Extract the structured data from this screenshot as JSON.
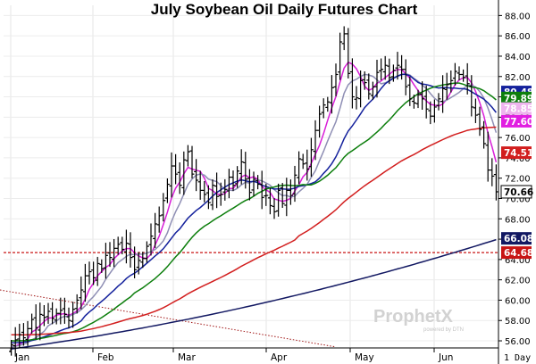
{
  "chart_data": {
    "type": "line",
    "title": "July Soybean Oil Daily Futures Chart",
    "y_axis": {
      "ticks": [
        56,
        58,
        60,
        62,
        64,
        66,
        68,
        70,
        72,
        74,
        76,
        78,
        80,
        82,
        84,
        86,
        88
      ],
      "labels": [
        "56.00",
        "58.00",
        "60.00",
        "62.00",
        "64.00",
        "66.00",
        "68.00",
        "70.00",
        "72.00",
        "74.00",
        "76.00",
        "78.00",
        "80.00",
        "82.00",
        "84.00",
        "86.00",
        "88.00"
      ],
      "ylim": [
        55.3,
        89.0
      ]
    },
    "x_axis": {
      "labels": [
        "Jan",
        "Feb",
        "Mar",
        "Apr",
        "May",
        "Jun"
      ],
      "xlim": [
        0,
        118
      ]
    },
    "period_label": "1 Day",
    "watermark": {
      "brand": "ProphetX",
      "sub": "powered by DTN"
    },
    "ohlc": {
      "start_day": 1,
      "closes": [
        55.6,
        56.1,
        56.6,
        56.3,
        57.2,
        58.1,
        57.3,
        58.6,
        58.3,
        58.9,
        58.2,
        58.7,
        59.0,
        58.6,
        58.0,
        59.1,
        60.0,
        61.0,
        62.4,
        62.8,
        62.2,
        63.6,
        63.1,
        64.4,
        64.2,
        65.1,
        65.5,
        65.0,
        65.6,
        64.2,
        63.0,
        63.9,
        64.1,
        65.3,
        66.3,
        67.5,
        68.3,
        69.8,
        71.4,
        73.2,
        72.4,
        71.3,
        73.8,
        74.6,
        72.4,
        71.8,
        70.8,
        70.4,
        69.6,
        71.3,
        70.2,
        70.4,
        70.9,
        72.1,
        71.3,
        72.7,
        73.6,
        71.9,
        70.6,
        71.9,
        71.4,
        70.1,
        70.3,
        69.3,
        68.7,
        70.8,
        69.5,
        70.8,
        70.3,
        72.3,
        73.9,
        73.4,
        72.9,
        74.8,
        76.7,
        78.3,
        79.2,
        79.5,
        80.9,
        82.2,
        85.4,
        86.2,
        82.3,
        80.0,
        79.9,
        81.6,
        81.4,
        80.3,
        81.0,
        82.4,
        82.7,
        83.1,
        81.9,
        82.6,
        83.1,
        82.7,
        81.0,
        79.8,
        79.4,
        80.2,
        79.8,
        78.8,
        78.1,
        79.0,
        79.8,
        80.8,
        81.2,
        81.6,
        82.5,
        82.2,
        81.9,
        81.3,
        79.0,
        78.2,
        76.8,
        75.4,
        72.8,
        72.2,
        70.66
      ]
    },
    "series": [
      {
        "name": "",
        "color": "#d81ed8",
        "last": 77.6
      },
      {
        "name": "",
        "color": "#8e8eb4",
        "last": 78.85
      },
      {
        "name": "",
        "color": "#14219c",
        "last": 80.48
      },
      {
        "name": "",
        "color": "#0c7e0c",
        "last": 79.89
      },
      {
        "name": "",
        "color": "#d21e1e",
        "last": 74.51
      },
      {
        "name": "",
        "color": "#121862",
        "last": 66.08
      }
    ],
    "reference_lines": [
      {
        "value": 64.68,
        "style": "dashed",
        "color": "#c81414"
      }
    ],
    "trendline": {
      "from": [
        0,
        61.0
      ],
      "to": [
        80,
        55.4
      ],
      "style": "dotted",
      "color": "#a01414"
    },
    "last_price": 70.66,
    "price_tags": [
      {
        "value": 80.48,
        "text": "80.48",
        "bg": "#14219c",
        "fg": "#ffffff"
      },
      {
        "value": 79.89,
        "text": "79.89",
        "bg": "#0c7e0c",
        "fg": "#ffffff"
      },
      {
        "value": 78.85,
        "text": "78.85",
        "bg": "#eeb4ee",
        "fg": "#ffffff"
      },
      {
        "value": 77.6,
        "text": "77.60",
        "bg": "#e11ee1",
        "fg": "#ffffff"
      },
      {
        "value": 74.51,
        "text": "74.51",
        "bg": "#d21e1e",
        "fg": "#ffffff"
      },
      {
        "value": 70.66,
        "text": "70.66",
        "bg": "#ffffff",
        "fg": "#000000",
        "border": "#000000"
      },
      {
        "value": 66.08,
        "text": "66.08",
        "bg": "#121862",
        "fg": "#ffffff"
      },
      {
        "value": 64.68,
        "text": "64.68",
        "bg": "#c81414",
        "fg": "#ffffff"
      }
    ]
  }
}
